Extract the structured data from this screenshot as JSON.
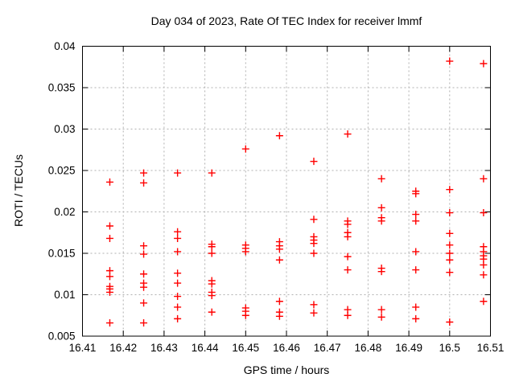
{
  "chart_data": {
    "type": "scatter",
    "title": "Day 034 of 2023, Rate Of TEC Index for receiver lmmf",
    "xlabel": "GPS time / hours",
    "ylabel": "ROTI / TECUs",
    "xlim": [
      16.41,
      16.51
    ],
    "ylim": [
      0.005,
      0.04
    ],
    "xticks": [
      {
        "v": 16.41,
        "label": "16.41"
      },
      {
        "v": 16.42,
        "label": "16.42"
      },
      {
        "v": 16.43,
        "label": "16.43"
      },
      {
        "v": 16.44,
        "label": "16.44"
      },
      {
        "v": 16.45,
        "label": "16.45"
      },
      {
        "v": 16.46,
        "label": "16.46"
      },
      {
        "v": 16.47,
        "label": "16.47"
      },
      {
        "v": 16.48,
        "label": "16.48"
      },
      {
        "v": 16.49,
        "label": "16.49"
      },
      {
        "v": 16.5,
        "label": "16.5"
      },
      {
        "v": 16.51,
        "label": "16.51"
      }
    ],
    "yticks": [
      {
        "v": 0.005,
        "label": "0.005"
      },
      {
        "v": 0.01,
        "label": "0.01"
      },
      {
        "v": 0.015,
        "label": "0.015"
      },
      {
        "v": 0.02,
        "label": "0.02"
      },
      {
        "v": 0.025,
        "label": "0.025"
      },
      {
        "v": 0.03,
        "label": "0.03"
      },
      {
        "v": 0.035,
        "label": "0.035"
      },
      {
        "v": 0.04,
        "label": "0.04"
      }
    ],
    "grid": true,
    "legend": "none",
    "marker": "plus",
    "colors": {
      "marker": "#ff0000",
      "grid": "#b0b0b0",
      "axis": "#000000",
      "text": "#000000",
      "background": "#ffffff"
    },
    "series": [
      {
        "name": "ROTI",
        "x": [
          16.4167,
          16.4167,
          16.4167,
          16.4167,
          16.4167,
          16.4167,
          16.4167,
          16.4167,
          16.4167,
          16.425,
          16.425,
          16.425,
          16.425,
          16.425,
          16.425,
          16.425,
          16.425,
          16.425,
          16.4333,
          16.4333,
          16.4333,
          16.4333,
          16.4333,
          16.4333,
          16.4333,
          16.4333,
          16.4333,
          16.4417,
          16.4417,
          16.4417,
          16.4417,
          16.4417,
          16.4417,
          16.4417,
          16.4417,
          16.4417,
          16.45,
          16.45,
          16.45,
          16.45,
          16.45,
          16.45,
          16.45,
          16.4583,
          16.4583,
          16.4583,
          16.4583,
          16.4583,
          16.4583,
          16.4583,
          16.4583,
          16.4667,
          16.4667,
          16.4667,
          16.4667,
          16.4667,
          16.4667,
          16.4667,
          16.4667,
          16.475,
          16.475,
          16.475,
          16.475,
          16.475,
          16.475,
          16.475,
          16.475,
          16.475,
          16.4833,
          16.4833,
          16.4833,
          16.4833,
          16.4833,
          16.4833,
          16.4833,
          16.4833,
          16.4917,
          16.4917,
          16.4917,
          16.4917,
          16.4917,
          16.4917,
          16.4917,
          16.4917,
          16.5,
          16.5,
          16.5,
          16.5,
          16.5,
          16.5,
          16.5,
          16.5,
          16.5,
          16.5083,
          16.5083,
          16.5083,
          16.5083,
          16.5083,
          16.5083,
          16.5083,
          16.5083,
          16.5083,
          16.5083
        ],
        "y": [
          0.0236,
          0.0183,
          0.0168,
          0.0129,
          0.0122,
          0.011,
          0.0107,
          0.0103,
          0.0066,
          0.0247,
          0.0235,
          0.0159,
          0.0149,
          0.0125,
          0.0114,
          0.0109,
          0.009,
          0.0066,
          0.0247,
          0.0176,
          0.0168,
          0.0152,
          0.0126,
          0.0114,
          0.0098,
          0.0085,
          0.0071,
          0.0247,
          0.0161,
          0.0158,
          0.015,
          0.0117,
          0.0113,
          0.0103,
          0.0099,
          0.0079,
          0.0276,
          0.016,
          0.0156,
          0.0152,
          0.0084,
          0.008,
          0.0075,
          0.0292,
          0.0164,
          0.0159,
          0.0155,
          0.0142,
          0.0092,
          0.0079,
          0.0074,
          0.0261,
          0.0191,
          0.017,
          0.0166,
          0.0162,
          0.015,
          0.0088,
          0.0078,
          0.0294,
          0.0189,
          0.0185,
          0.0175,
          0.017,
          0.0146,
          0.013,
          0.0082,
          0.0075,
          0.024,
          0.0205,
          0.0193,
          0.0189,
          0.0132,
          0.0128,
          0.0082,
          0.0073,
          0.0225,
          0.0222,
          0.0197,
          0.0189,
          0.0152,
          0.013,
          0.0085,
          0.0071,
          0.0382,
          0.0227,
          0.0199,
          0.0174,
          0.016,
          0.015,
          0.0142,
          0.0127,
          0.0067,
          0.0379,
          0.024,
          0.0199,
          0.0158,
          0.0152,
          0.0147,
          0.0143,
          0.0136,
          0.0124,
          0.0092
        ]
      }
    ]
  }
}
